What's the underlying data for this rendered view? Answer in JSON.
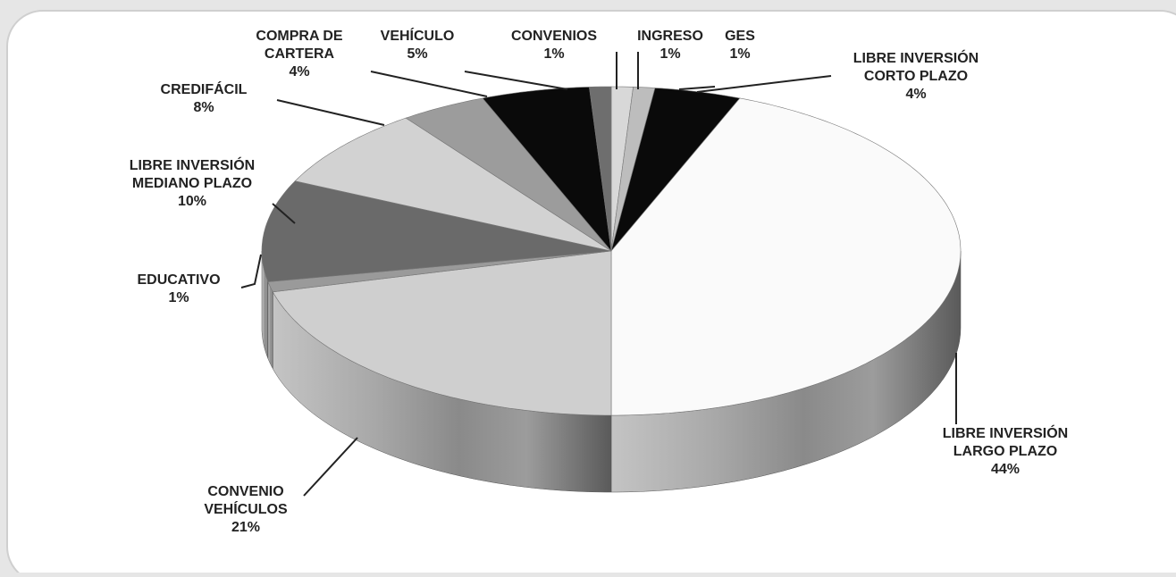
{
  "chart_data": {
    "type": "pie3d",
    "categories": [
      [
        "INGRESO"
      ],
      [
        "GES"
      ],
      [
        "LIBRE INVERSIÓN",
        "CORTO PLAZO"
      ],
      [
        "LIBRE INVERSIÓN",
        "LARGO PLAZO"
      ],
      [
        "CONVENIO",
        "VEHÍCULOS"
      ],
      [
        "EDUCATIVO"
      ],
      [
        "LIBRE INVERSIÓN",
        "MEDIANO PLAZO"
      ],
      [
        "CREDIFÁCIL"
      ],
      [
        "COMPRA DE",
        "CARTERA"
      ],
      [
        "VEHÍCULO"
      ],
      [
        "CONVENIOS"
      ]
    ],
    "values": [
      1,
      1,
      4,
      44,
      21,
      1,
      10,
      8,
      4,
      5,
      1
    ],
    "value_labels": [
      "1%",
      "1%",
      "4%",
      "44%",
      "21%",
      "1%",
      "10%",
      "8%",
      "4%",
      "5%",
      "1%"
    ],
    "colors": [
      "#d8d8d8",
      "#bdbdbd",
      "#0a0a0a",
      "#fafafa",
      "#cfcfcf",
      "#9a9a9a",
      "#6a6a6a",
      "#d2d2d2",
      "#9c9c9c",
      "#0a0a0a",
      "#6e6e6e"
    ]
  }
}
